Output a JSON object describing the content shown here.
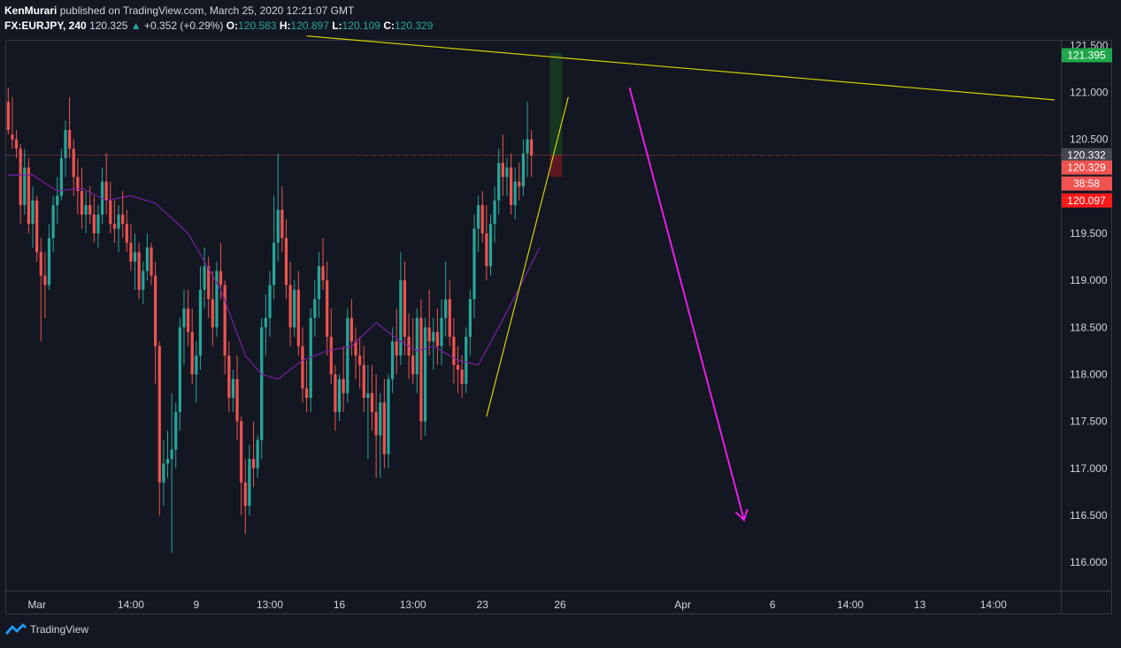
{
  "header": {
    "author": "KenMurari",
    "published_text": "published on TradingView.com, March 25, 2020 12:21:07 GMT",
    "symbol": "FX:EURJPY, 240",
    "last": "120.325",
    "change": "+0.352 (+0.29%)",
    "o_label": "O:",
    "o_value": "120.583",
    "h_label": "H:",
    "h_value": "120.897",
    "l_label": "L:",
    "l_value": "120.109",
    "c_label": "C:",
    "c_value": "120.329"
  },
  "footer": {
    "brand": "TradingView"
  },
  "colors": {
    "bg": "#131722",
    "up": "#26a69a",
    "down": "#ef5350",
    "ma": "#7b1fa2",
    "trend": "#d4d400",
    "arrow": "#e91ee6",
    "grid": "#363a45"
  },
  "chart_data": {
    "type": "candlestick",
    "ylim": [
      115.7,
      121.55
    ],
    "y_ticks": [
      "121.500",
      "121.000",
      "120.500",
      "120.000",
      "119.500",
      "119.000",
      "118.500",
      "118.000",
      "117.500",
      "117.000",
      "116.500",
      "116.000"
    ],
    "y_tick_values": [
      121.5,
      121.0,
      120.5,
      120.0,
      119.5,
      119.0,
      118.5,
      118.0,
      117.5,
      117.0,
      116.5,
      116.0
    ],
    "x_ticks": [
      "Mar",
      "14:00",
      "9",
      "13:00",
      "16",
      "13:00",
      "23",
      "26",
      "Apr",
      "6",
      "14:00",
      "13",
      "14:00"
    ],
    "x_tick_bars": [
      7,
      30,
      46,
      64,
      81,
      99,
      116,
      135,
      165,
      187,
      206,
      223,
      241
    ],
    "total_bars": 258,
    "candles": [
      [
        120.9,
        121.05,
        120.55,
        120.6
      ],
      [
        120.55,
        120.95,
        120.4,
        120.5
      ],
      [
        120.5,
        120.6,
        120.3,
        120.4
      ],
      [
        120.4,
        120.45,
        119.6,
        119.8
      ],
      [
        119.8,
        120.4,
        119.7,
        120.2
      ],
      [
        120.2,
        120.3,
        119.5,
        119.6
      ],
      [
        119.6,
        120.0,
        119.35,
        119.85
      ],
      [
        119.85,
        119.9,
        119.2,
        119.3
      ],
      [
        119.3,
        119.45,
        118.35,
        119.05
      ],
      [
        119.05,
        119.3,
        118.6,
        118.95
      ],
      [
        118.95,
        119.6,
        118.9,
        119.45
      ],
      [
        119.45,
        119.9,
        119.3,
        119.8
      ],
      [
        119.8,
        120.1,
        119.6,
        119.9
      ],
      [
        119.9,
        120.4,
        119.85,
        120.3
      ],
      [
        120.3,
        120.7,
        120.1,
        120.6
      ],
      [
        120.6,
        120.95,
        120.3,
        120.4
      ],
      [
        120.4,
        120.5,
        119.9,
        120.1
      ],
      [
        120.1,
        120.3,
        119.7,
        119.95
      ],
      [
        119.95,
        120.2,
        119.55,
        119.7
      ],
      [
        119.7,
        119.95,
        119.5,
        119.8
      ],
      [
        119.8,
        120.0,
        119.6,
        119.7
      ],
      [
        119.7,
        119.9,
        119.4,
        119.5
      ],
      [
        119.5,
        119.8,
        119.35,
        119.7
      ],
      [
        119.7,
        120.2,
        119.6,
        120.05
      ],
      [
        120.05,
        120.35,
        119.7,
        119.85
      ],
      [
        119.85,
        120.05,
        119.5,
        119.6
      ],
      [
        119.6,
        119.85,
        119.4,
        119.55
      ],
      [
        119.55,
        119.8,
        119.3,
        119.7
      ],
      [
        119.7,
        119.95,
        119.45,
        119.6
      ],
      [
        119.6,
        119.75,
        119.3,
        119.4
      ],
      [
        119.4,
        119.6,
        119.1,
        119.2
      ],
      [
        119.2,
        119.5,
        118.9,
        119.3
      ],
      [
        119.3,
        119.4,
        118.8,
        118.9
      ],
      [
        118.9,
        119.2,
        118.75,
        119.1
      ],
      [
        119.1,
        119.5,
        119.0,
        119.35
      ],
      [
        119.35,
        119.4,
        118.95,
        119.05
      ],
      [
        119.05,
        119.2,
        117.9,
        118.3
      ],
      [
        118.3,
        118.35,
        116.5,
        116.85
      ],
      [
        116.85,
        117.3,
        116.6,
        117.05
      ],
      [
        117.05,
        117.4,
        116.9,
        117.1
      ],
      [
        117.1,
        117.8,
        116.1,
        117.2
      ],
      [
        117.2,
        117.7,
        117.0,
        117.6
      ],
      [
        117.6,
        118.6,
        117.4,
        118.5
      ],
      [
        118.5,
        118.9,
        118.1,
        118.7
      ],
      [
        118.7,
        118.9,
        118.3,
        118.45
      ],
      [
        118.45,
        118.7,
        117.9,
        118.0
      ],
      [
        118.0,
        118.35,
        117.7,
        118.2
      ],
      [
        118.2,
        119.15,
        118.05,
        118.9
      ],
      [
        118.9,
        119.35,
        118.7,
        119.15
      ],
      [
        119.15,
        119.25,
        118.6,
        118.8
      ],
      [
        118.8,
        119.1,
        118.3,
        118.5
      ],
      [
        118.5,
        119.2,
        118.4,
        119.1
      ],
      [
        119.1,
        119.4,
        118.8,
        118.95
      ],
      [
        118.95,
        119.0,
        118.0,
        118.2
      ],
      [
        118.2,
        118.35,
        117.6,
        117.75
      ],
      [
        117.75,
        118.05,
        117.6,
        117.95
      ],
      [
        117.95,
        118.2,
        117.3,
        117.5
      ],
      [
        117.5,
        117.55,
        116.5,
        116.85
      ],
      [
        116.85,
        117.1,
        116.3,
        116.6
      ],
      [
        116.6,
        117.25,
        116.5,
        117.1
      ],
      [
        117.1,
        117.5,
        116.8,
        117.0
      ],
      [
        117.0,
        117.35,
        116.9,
        117.3
      ],
      [
        117.3,
        118.6,
        117.1,
        118.5
      ],
      [
        118.5,
        118.85,
        118.2,
        118.6
      ],
      [
        118.6,
        119.1,
        118.4,
        118.95
      ],
      [
        118.95,
        119.9,
        118.8,
        119.4
      ],
      [
        119.4,
        120.35,
        119.2,
        119.75
      ],
      [
        119.75,
        120.0,
        119.3,
        119.45
      ],
      [
        119.45,
        119.65,
        118.8,
        118.95
      ],
      [
        118.95,
        119.2,
        118.3,
        118.5
      ],
      [
        118.5,
        119.0,
        118.4,
        118.9
      ],
      [
        118.9,
        119.1,
        118.2,
        118.3
      ],
      [
        118.3,
        118.5,
        117.7,
        117.85
      ],
      [
        117.85,
        118.15,
        117.6,
        117.75
      ],
      [
        117.75,
        118.7,
        117.6,
        118.6
      ],
      [
        118.6,
        119.0,
        118.4,
        118.8
      ],
      [
        118.8,
        119.3,
        118.6,
        119.15
      ],
      [
        119.15,
        119.45,
        118.9,
        119.0
      ],
      [
        119.0,
        119.2,
        118.2,
        118.4
      ],
      [
        118.4,
        118.7,
        117.9,
        118.0
      ],
      [
        118.0,
        118.1,
        117.4,
        117.6
      ],
      [
        117.6,
        118.0,
        117.5,
        117.95
      ],
      [
        117.95,
        118.3,
        117.6,
        117.8
      ],
      [
        117.8,
        118.7,
        117.7,
        118.6
      ],
      [
        118.6,
        118.8,
        118.2,
        118.35
      ],
      [
        118.35,
        118.5,
        117.95,
        118.2
      ],
      [
        118.2,
        118.4,
        117.85,
        118.1
      ],
      [
        118.1,
        118.3,
        117.6,
        117.75
      ],
      [
        117.75,
        118.1,
        117.1,
        117.8
      ],
      [
        117.8,
        118.1,
        117.4,
        117.6
      ],
      [
        117.6,
        118.0,
        116.9,
        117.35
      ],
      [
        117.35,
        117.8,
        116.9,
        117.7
      ],
      [
        117.7,
        117.95,
        117.0,
        117.15
      ],
      [
        117.15,
        118.0,
        117.0,
        117.95
      ],
      [
        117.95,
        118.5,
        117.8,
        118.35
      ],
      [
        118.35,
        118.7,
        118.0,
        118.2
      ],
      [
        118.2,
        119.3,
        118.1,
        119.0
      ],
      [
        119.0,
        119.2,
        118.2,
        118.4
      ],
      [
        118.4,
        118.65,
        117.95,
        118.2
      ],
      [
        118.2,
        118.6,
        117.9,
        118.0
      ],
      [
        118.0,
        118.7,
        117.8,
        118.6
      ],
      [
        118.6,
        118.8,
        117.3,
        117.5
      ],
      [
        117.5,
        118.6,
        117.35,
        118.5
      ],
      [
        118.5,
        118.9,
        118.2,
        118.35
      ],
      [
        118.35,
        118.6,
        118.05,
        118.45
      ],
      [
        118.45,
        118.7,
        118.1,
        118.3
      ],
      [
        118.3,
        118.8,
        118.1,
        118.6
      ],
      [
        118.6,
        119.2,
        118.4,
        118.8
      ],
      [
        118.8,
        119.0,
        118.3,
        118.4
      ],
      [
        118.4,
        118.6,
        117.9,
        118.1
      ],
      [
        118.1,
        118.3,
        117.8,
        118.05
      ],
      [
        118.05,
        118.2,
        117.75,
        117.9
      ],
      [
        117.9,
        118.5,
        117.8,
        118.4
      ],
      [
        118.4,
        118.9,
        118.2,
        118.8
      ],
      [
        118.8,
        119.7,
        118.6,
        119.55
      ],
      [
        119.55,
        119.9,
        119.3,
        119.8
      ],
      [
        119.8,
        119.95,
        119.4,
        119.5
      ],
      [
        119.5,
        119.8,
        119.0,
        119.15
      ],
      [
        119.15,
        119.7,
        119.05,
        119.6
      ],
      [
        119.6,
        120.0,
        119.4,
        119.85
      ],
      [
        119.85,
        120.4,
        119.7,
        120.25
      ],
      [
        120.25,
        120.55,
        119.9,
        120.1
      ],
      [
        120.1,
        120.3,
        119.9,
        120.2
      ],
      [
        120.2,
        120.35,
        119.7,
        119.8
      ],
      [
        119.8,
        120.2,
        119.65,
        120.05
      ],
      [
        120.05,
        120.25,
        119.85,
        120.0
      ],
      [
        120.0,
        120.5,
        119.9,
        120.35
      ],
      [
        120.35,
        120.9,
        120.1,
        120.5
      ],
      [
        120.5,
        120.6,
        120.1,
        120.33
      ]
    ],
    "ma": [
      [
        0,
        120.12
      ],
      [
        6,
        120.12
      ],
      [
        12,
        119.95
      ],
      [
        18,
        119.98
      ],
      [
        24,
        119.85
      ],
      [
        30,
        119.9
      ],
      [
        36,
        119.82
      ],
      [
        44,
        119.5
      ],
      [
        52,
        118.9
      ],
      [
        58,
        118.2
      ],
      [
        62,
        118.0
      ],
      [
        66,
        117.95
      ],
      [
        72,
        118.15
      ],
      [
        78,
        118.25
      ],
      [
        84,
        118.3
      ],
      [
        90,
        118.55
      ],
      [
        96,
        118.35
      ],
      [
        100,
        118.25
      ],
      [
        104,
        118.3
      ],
      [
        110,
        118.15
      ],
      [
        115,
        118.1
      ],
      [
        120,
        118.5
      ],
      [
        126,
        119.0
      ],
      [
        130,
        119.35
      ]
    ],
    "trendlines": [
      {
        "from": [
          73,
          121.6
        ],
        "to": [
          256,
          120.92
        ]
      },
      {
        "from": [
          117,
          117.55
        ],
        "to": [
          137,
          120.95
        ]
      }
    ],
    "arrow": {
      "from": [
        152,
        121.05
      ],
      "to": [
        180,
        116.45
      ]
    },
    "last_price_line": 120.332,
    "position_box": {
      "bar_start": 133,
      "bar_end": 136,
      "top": 121.42,
      "mid": 120.332,
      "bottom": 120.1
    },
    "price_tags": [
      {
        "value": 121.395,
        "label": "121.395",
        "color": "#1fa84a"
      },
      {
        "value": 120.332,
        "label": "120.332",
        "color": "#434651"
      },
      {
        "value": 120.2,
        "label": "120.329",
        "color": "#ef5350"
      },
      {
        "value": 120.03,
        "label": "38:58",
        "color": "#ef5350"
      },
      {
        "value": 119.85,
        "label": "120.097",
        "color": "#ff1a1a"
      }
    ]
  }
}
